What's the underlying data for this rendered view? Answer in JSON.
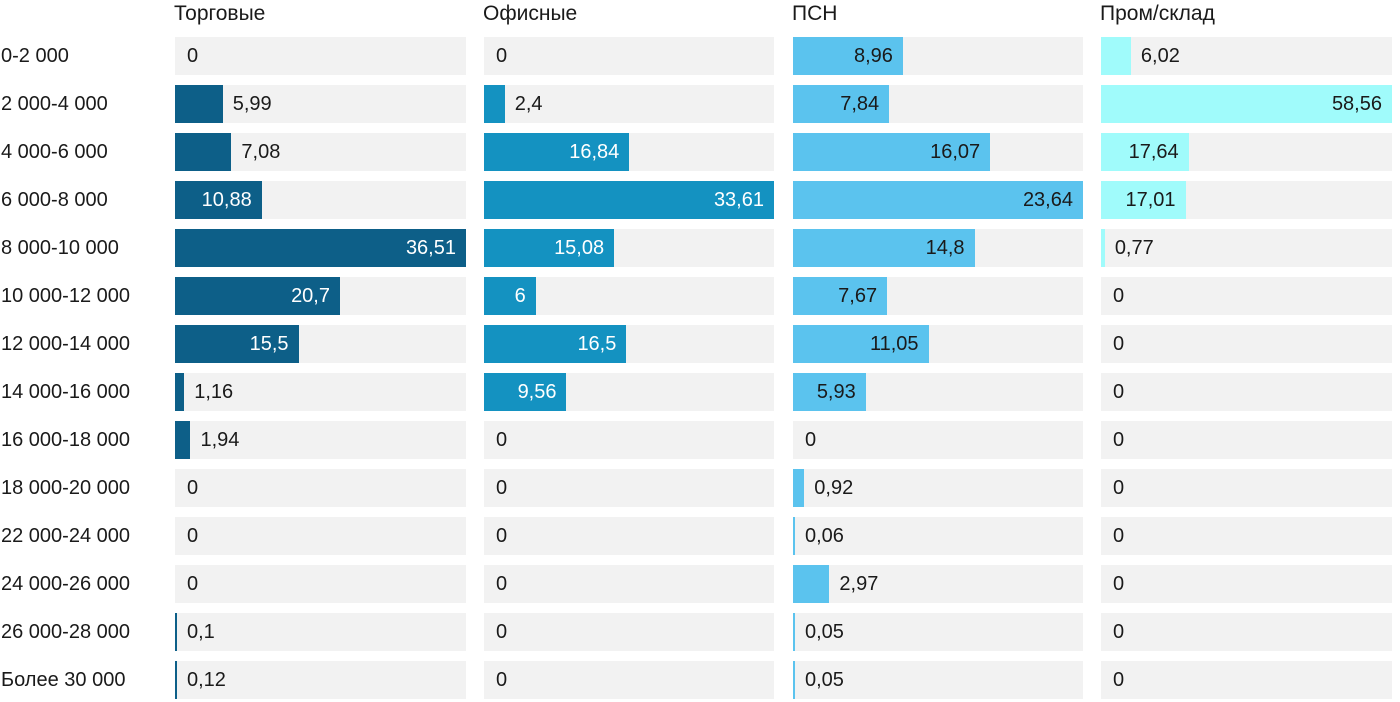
{
  "chart_data": {
    "type": "bar",
    "orientation": "horizontal",
    "title": "",
    "xlabel": "",
    "ylabel": "",
    "grid": false,
    "legend_position": "top-column-headers",
    "decimal_separator": "comma",
    "scaling_note": "each column is scaled independently so its maximum value fills the full track width",
    "track_color": "#f2f2f2",
    "background_color": "#ffffff",
    "text_color": "#1a1a1a",
    "categories": [
      "0-2 000",
      "2 000-4 000",
      "4 000-6 000",
      "6 000-8 000",
      "8 000-10 000",
      "10 000-12 000",
      "12 000-14 000",
      "14 000-16 000",
      "16 000-18 000",
      "18 000-20 000",
      "22 000-24 000",
      "24 000-26 000",
      "26 000-28 000",
      "Более 30 000"
    ],
    "series": [
      {
        "name": "Торговые",
        "color": "#0d5f88",
        "inside_label_color": "#ffffff",
        "max": 36.51,
        "values": [
          0,
          5.99,
          7.08,
          10.88,
          36.51,
          20.7,
          15.5,
          1.16,
          1.94,
          0,
          0,
          0,
          0.1,
          0.12
        ],
        "labels": [
          "0",
          "5,99",
          "7,08",
          "10,88",
          "36,51",
          "20,7",
          "15,5",
          "1,16",
          "1,94",
          "0",
          "0",
          "0",
          "0,1",
          "0,12"
        ]
      },
      {
        "name": "Офисные",
        "color": "#1492c1",
        "inside_label_color": "#ffffff",
        "max": 33.61,
        "values": [
          0,
          2.4,
          16.84,
          33.61,
          15.08,
          6,
          16.5,
          9.56,
          0,
          0,
          0,
          0,
          0,
          0
        ],
        "labels": [
          "0",
          "2,4",
          "16,84",
          "33,61",
          "15,08",
          "6",
          "16,5",
          "9,56",
          "0",
          "0",
          "0",
          "0",
          "0",
          "0"
        ]
      },
      {
        "name": "ПСН",
        "color": "#5bc3ee",
        "inside_label_color": "#1a1a1a",
        "max": 23.64,
        "values": [
          8.96,
          7.84,
          16.07,
          23.64,
          14.8,
          7.67,
          11.05,
          5.93,
          0,
          0.92,
          0.06,
          2.97,
          0.05,
          0.05
        ],
        "labels": [
          "8,96",
          "7,84",
          "16,07",
          "23,64",
          "14,8",
          "7,67",
          "11,05",
          "5,93",
          "0",
          "0,92",
          "0,06",
          "2,97",
          "0,05",
          "0,05"
        ]
      },
      {
        "name": "Пром/склад",
        "color": "#a0fbfb",
        "inside_label_color": "#1a1a1a",
        "max": 58.56,
        "values": [
          6.02,
          58.56,
          17.64,
          17.01,
          0.77,
          0,
          0,
          0,
          0,
          0,
          0,
          0,
          0,
          0
        ],
        "labels": [
          "6,02",
          "58,56",
          "17,64",
          "17,01",
          "0,77",
          "0",
          "0",
          "0",
          "0",
          "0",
          "0",
          "0",
          "0",
          "0"
        ]
      }
    ]
  }
}
